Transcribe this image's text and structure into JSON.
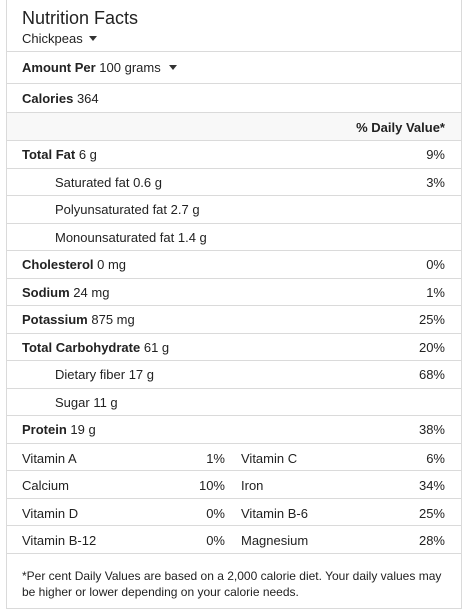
{
  "header": {
    "title": "Nutrition Facts",
    "food": "Chickpeas"
  },
  "amount": {
    "label": "Amount Per",
    "unit": "100 grams"
  },
  "calories": {
    "label": "Calories",
    "value": "364"
  },
  "dv_header": "% Daily Value*",
  "nutrients": [
    {
      "name": "Total Fat",
      "amount": "6 g",
      "pct": "9%",
      "bold": true,
      "indent": false
    },
    {
      "name": "Saturated fat",
      "amount": "0.6 g",
      "pct": "3%",
      "bold": false,
      "indent": true
    },
    {
      "name": "Polyunsaturated fat",
      "amount": "2.7 g",
      "pct": "",
      "bold": false,
      "indent": true
    },
    {
      "name": "Monounsaturated fat",
      "amount": "1.4 g",
      "pct": "",
      "bold": false,
      "indent": true
    },
    {
      "name": "Cholesterol",
      "amount": "0 mg",
      "pct": "0%",
      "bold": true,
      "indent": false
    },
    {
      "name": "Sodium",
      "amount": "24 mg",
      "pct": "1%",
      "bold": true,
      "indent": false
    },
    {
      "name": "Potassium",
      "amount": "875 mg",
      "pct": "25%",
      "bold": true,
      "indent": false
    },
    {
      "name": "Total Carbohydrate",
      "amount": "61 g",
      "pct": "20%",
      "bold": true,
      "indent": false
    },
    {
      "name": "Dietary fiber",
      "amount": "17 g",
      "pct": "68%",
      "bold": false,
      "indent": true
    },
    {
      "name": "Sugar",
      "amount": "11 g",
      "pct": "",
      "bold": false,
      "indent": true
    },
    {
      "name": "Protein",
      "amount": "19 g",
      "pct": "38%",
      "bold": true,
      "indent": false
    }
  ],
  "vitamins": [
    {
      "n1": "Vitamin A",
      "p1": "1%",
      "n2": "Vitamin C",
      "p2": "6%"
    },
    {
      "n1": "Calcium",
      "p1": "10%",
      "n2": "Iron",
      "p2": "34%"
    },
    {
      "n1": "Vitamin D",
      "p1": "0%",
      "n2": "Vitamin B-6",
      "p2": "25%"
    },
    {
      "n1": "Vitamin B-12",
      "p1": "0%",
      "n2": "Magnesium",
      "p2": "28%"
    }
  ],
  "footnote": "*Per cent Daily Values are based on a 2,000 calorie diet. Your daily values may be higher or lower depending on your calorie needs."
}
